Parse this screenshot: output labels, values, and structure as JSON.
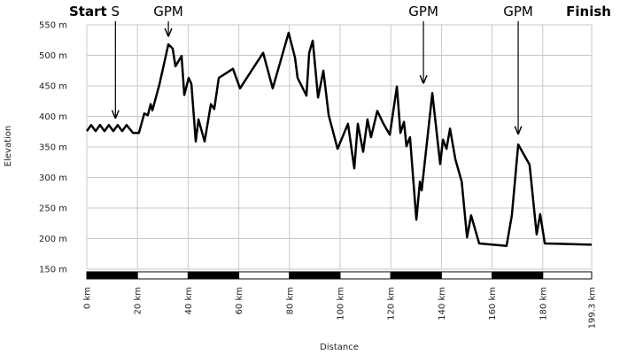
{
  "chart_data": {
    "type": "line",
    "x_label": "Distance",
    "y_label": "Elevation",
    "start_label": "Start",
    "finish_label": "Finish",
    "x": [
      0,
      1.7,
      3.5,
      5.2,
      7,
      8.7,
      10.5,
      12.2,
      14,
      15.7,
      18.2,
      20.6,
      22.7,
      24.1,
      25.2,
      25.9,
      28.7,
      32.2,
      33.9,
      35,
      37.4,
      38.5,
      40.2,
      41.3,
      43,
      44.1,
      46.5,
      49,
      50.3,
      52.1,
      57.7,
      60.5,
      69.6,
      73.4,
      79.7,
      82.2,
      83.2,
      86.7,
      87.8,
      89.2,
      91.3,
      93.4,
      95.5,
      99,
      103.1,
      105.6,
      107,
      109.1,
      110.8,
      112.2,
      114.7,
      117.1,
      119.6,
      122.4,
      123.8,
      125.2,
      126.2,
      127.6,
      130.1,
      131.5,
      132.2,
      136.4,
      139.5,
      140.6,
      142,
      143.4,
      145.5,
      148,
      150.1,
      151.7,
      154.9,
      165.7,
      167.8,
      170.3,
      174.8,
      177.6,
      179,
      180.8,
      199.3
    ],
    "values": [
      376,
      386,
      376,
      386,
      376,
      386,
      376,
      386,
      376,
      386,
      373,
      373,
      405,
      402,
      420,
      410,
      453,
      518,
      511,
      482,
      499,
      435,
      463,
      453,
      359,
      395,
      359,
      420,
      412,
      463,
      478,
      446,
      504,
      446,
      537,
      496,
      463,
      434,
      504,
      524,
      431,
      475,
      402,
      347,
      388,
      315,
      388,
      342,
      395,
      366,
      409,
      388,
      370,
      449,
      373,
      391,
      351,
      366,
      231,
      293,
      279,
      438,
      322,
      362,
      347,
      380,
      330,
      293,
      202,
      238,
      192,
      188,
      238,
      354,
      321,
      207,
      240,
      192,
      190
    ],
    "color": "#000000",
    "annotations": [
      {
        "text": "S",
        "x": 11.3,
        "y": 392
      },
      {
        "text": "GPM",
        "x": 32.2,
        "y": 526
      },
      {
        "text": "GPM",
        "x": 132.9,
        "y": 449
      },
      {
        "text": "GPM",
        "x": 170.3,
        "y": 366
      }
    ],
    "xlim": [
      0,
      199.3
    ],
    "ylim": [
      150,
      550
    ],
    "xticks": [
      {
        "value": 0,
        "label": "0 km"
      },
      {
        "value": 20,
        "label": "20 km"
      },
      {
        "value": 40,
        "label": "40 km"
      },
      {
        "value": 60,
        "label": "60 km"
      },
      {
        "value": 80,
        "label": "80 km"
      },
      {
        "value": 100,
        "label": "100 km"
      },
      {
        "value": 120,
        "label": "120 km"
      },
      {
        "value": 140,
        "label": "140 km"
      },
      {
        "value": 160,
        "label": "160 km"
      },
      {
        "value": 180,
        "label": "180 km"
      },
      {
        "value": 199.3,
        "label": "199.3 km"
      }
    ],
    "yticks": [
      {
        "value": 150,
        "label": "150 m"
      },
      {
        "value": 200,
        "label": "200 m"
      },
      {
        "value": 250,
        "label": "250 m"
      },
      {
        "value": 300,
        "label": "300 m"
      },
      {
        "value": 350,
        "label": "350 m"
      },
      {
        "value": 400,
        "label": "400 m"
      },
      {
        "value": 450,
        "label": "450 m"
      },
      {
        "value": 500,
        "label": "500 m"
      },
      {
        "value": 550,
        "label": "550 m"
      }
    ],
    "grid": true
  }
}
